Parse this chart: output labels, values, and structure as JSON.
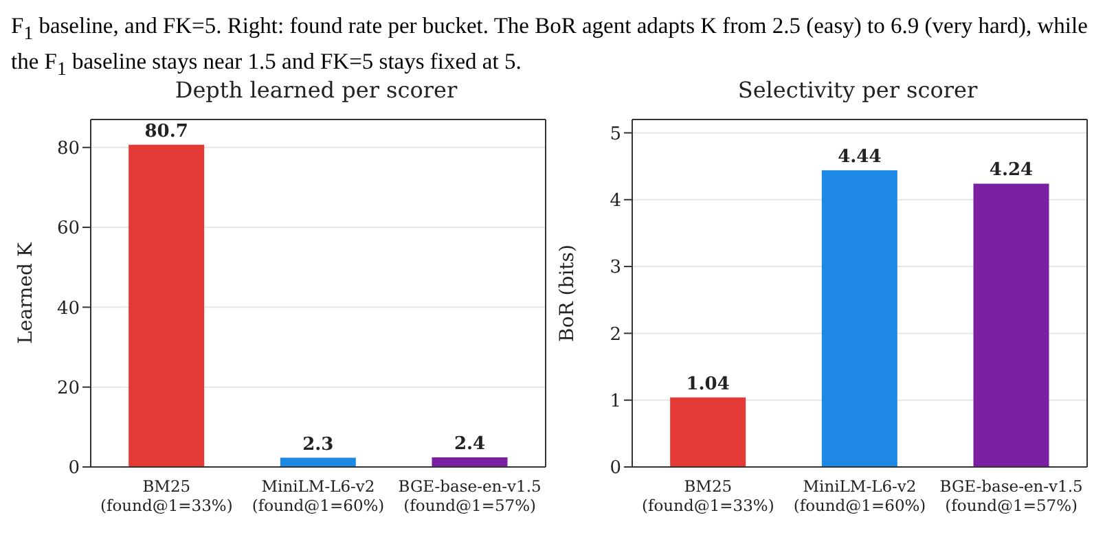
{
  "chart_data": [
    {
      "type": "bar",
      "title": "Depth learned per scorer",
      "ylabel": "Learned K",
      "annotations": [
        "F$_{1}$ baseline, and FK=5. Right: found rate per bucket. The BoR agent adapts K from 2.5 (easy) to 6.9 (very hard), while the F$_{1}$ baseline stays near 1.5 and FK=5 stays fixed at 5."
      ],
      "categories": [
        "BM25\n(found@1=33%)",
        "MiniLM-L6-v2\n(found@1=60%)",
        "BGE-base-en-v1.5\n(found@1=57%)"
      ],
      "values": [
        80.7,
        2.3,
        2.4
      ],
      "colors": [
        "#e53935",
        "#1e88e5",
        "#7b1fa2"
      ],
      "ylim": [
        0,
        87
      ],
      "yticks": [
        0,
        20,
        40,
        60,
        80
      ],
      "grid": "y",
      "data_labels": true
    },
    {
      "type": "bar",
      "title": "Selectivity per scorer",
      "ylabel": "BoR (bits)",
      "categories": [
        "BM25\n(found@1=33%)",
        "MiniLM-L6-v2\n(found@1=60%)",
        "BGE-base-en-v1.5\n(found@1=57%)"
      ],
      "values": [
        1.04,
        4.44,
        4.24
      ],
      "colors": [
        "#e53935",
        "#1e88e5",
        "#7b1fa2"
      ],
      "ylim": [
        0,
        5.2
      ],
      "yticks": [
        0,
        1,
        2,
        3,
        4,
        5
      ],
      "grid": "y",
      "data_labels": true
    }
  ]
}
